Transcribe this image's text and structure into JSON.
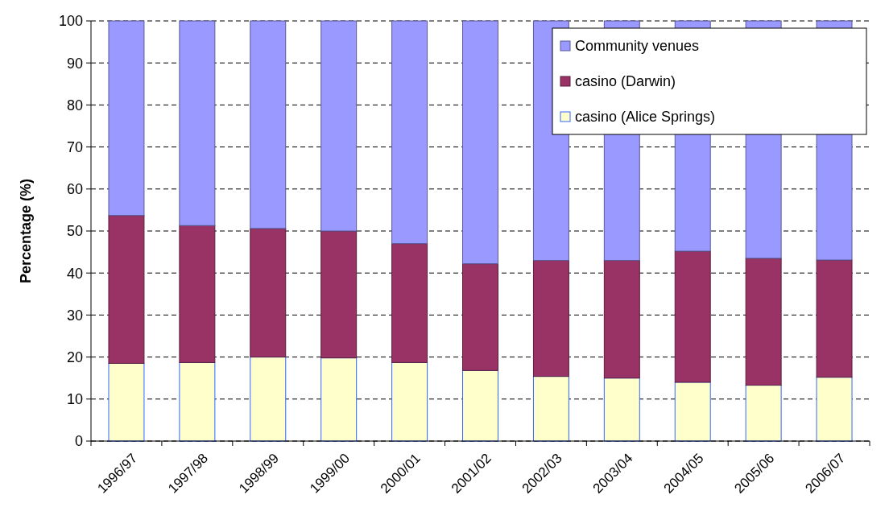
{
  "chart_data": {
    "type": "bar",
    "stacked": true,
    "ylabel": "Percentage (%)",
    "categories": [
      "1996/97",
      "1997/98",
      "1998/99",
      "1999/00",
      "2000/01",
      "2001/02",
      "2002/03",
      "2003/04",
      "2004/05",
      "2005/06",
      "2006/07"
    ],
    "series": [
      {
        "name": "casino (Alice Springs)",
        "color": "#ffffcc",
        "values": [
          18.5,
          18.7,
          20,
          19.8,
          18.7,
          16.8,
          15.4,
          15,
          14,
          13.3,
          15.2
        ]
      },
      {
        "name": "casino (Darwin)",
        "color": "#993366",
        "values": [
          35.2,
          32.6,
          30.6,
          30.2,
          28.3,
          25.4,
          27.6,
          28,
          31.2,
          30.2,
          27.9
        ]
      },
      {
        "name": "Community venues",
        "color": "#9999ff",
        "values": [
          46.3,
          48.7,
          49.4,
          50,
          53,
          57.8,
          57,
          57,
          54.8,
          56.5,
          56.9
        ]
      }
    ],
    "ylim": [
      0,
      100
    ],
    "yticks": [
      0,
      10,
      20,
      30,
      40,
      50,
      60,
      70,
      80,
      90,
      100
    ],
    "grid": "y",
    "legend": "top right"
  }
}
